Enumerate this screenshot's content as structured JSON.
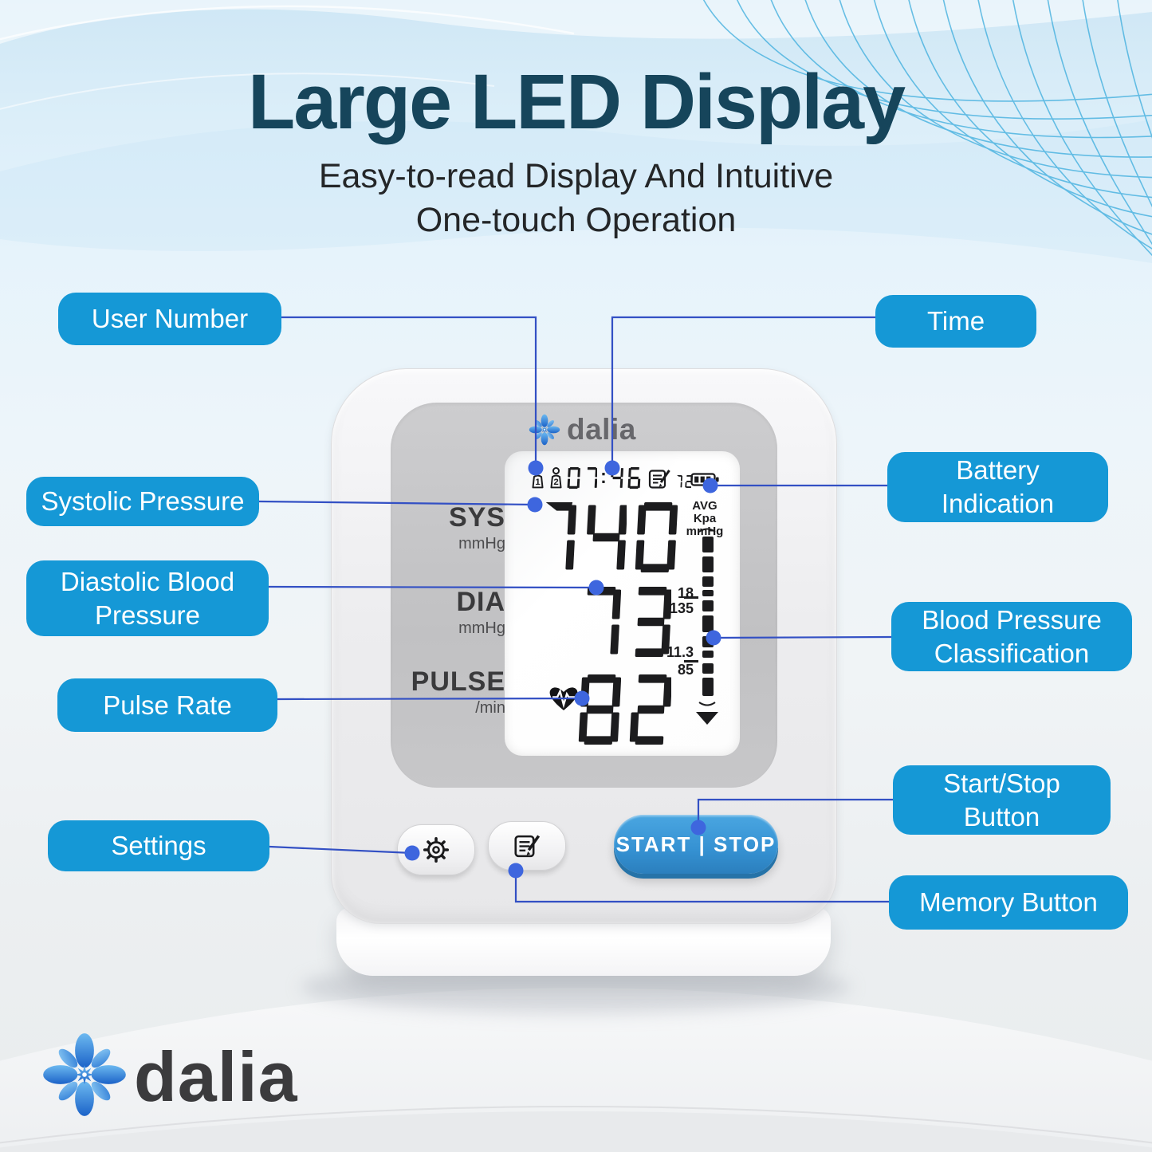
{
  "header": {
    "title": "Large LED Display",
    "subtitle_line1": "Easy-to-read Display And Intuitive",
    "subtitle_line2": "One-touch Operation"
  },
  "callouts": {
    "user_number": "User Number",
    "time": "Time",
    "systolic": "Systolic Pressure",
    "battery": "Battery Indication",
    "diastolic": "Diastolic Blood Pressure",
    "bp_classification": "Blood Pressure Classification",
    "pulse": "Pulse Rate",
    "start_stop": "Start/Stop Button",
    "settings": "Settings",
    "memory": "Memory Button"
  },
  "device": {
    "brand": "dalia",
    "display": {
      "users": [
        "1",
        "2"
      ],
      "time": "07:46",
      "memory_count": "12",
      "rows": [
        {
          "label": "SYS",
          "unit": "mmHg",
          "value": "140"
        },
        {
          "label": "DIA",
          "unit": "mmHg",
          "value": "73"
        },
        {
          "label": "PULSE",
          "unit": "/min",
          "value": "82"
        }
      ],
      "scale": {
        "header_lines": [
          "AVG",
          "Kpa",
          "mmHg"
        ],
        "tick_labels": [
          "18",
          "135",
          "11.3",
          "85"
        ]
      }
    },
    "buttons": {
      "start_stop": "START | STOP"
    }
  },
  "footer": {
    "brand": "dalia"
  },
  "icons": [
    "user-1-icon",
    "user-2-icon",
    "memory-log-icon",
    "battery-icon",
    "heart-pulse-icon",
    "gear-icon",
    "memory-notepad-icon",
    "flower-logo-icon",
    "classification-bar"
  ],
  "colors": {
    "callout_bg": "#1598d6",
    "connector_line": "#3350c4",
    "connector_dot": "#3e66de",
    "title": "#16455b",
    "button_blue": "#3b9ad8",
    "lcd_ink": "#1c1c1e",
    "brand_blue": "#2f7cd6"
  }
}
